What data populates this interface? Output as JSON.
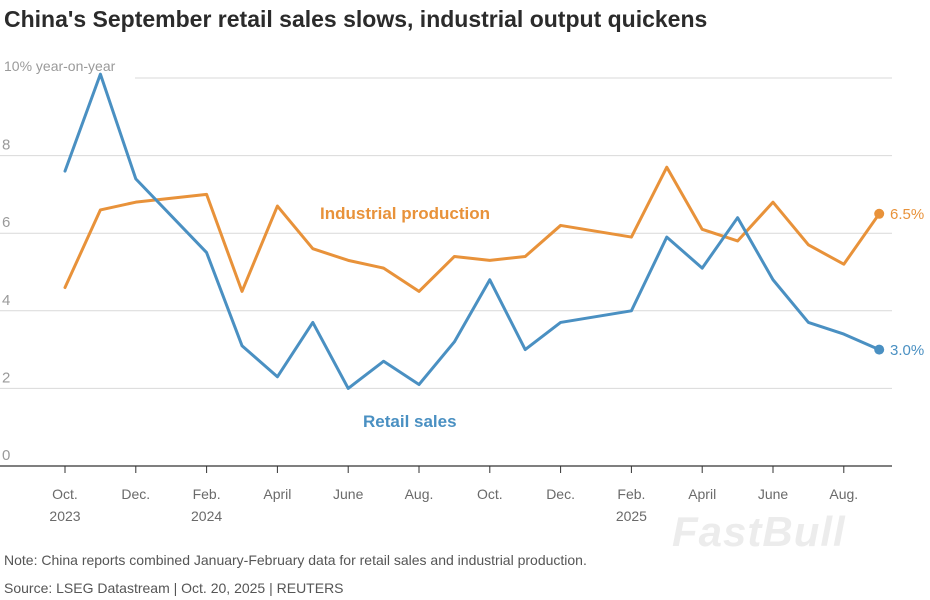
{
  "title": "China's September retail sales slows, industrial output quickens",
  "note": "Note: China reports combined January-February data for retail sales and industrial production.",
  "source": "Source: LSEG Datastream | Oct. 20, 2025 | REUTERS",
  "watermark": "FastBull",
  "colors": {
    "retail": "#4a90c2",
    "industrial": "#e8923a",
    "grid": "#d9d9d9",
    "axis": "#333333"
  },
  "chart_data": {
    "type": "line",
    "title": "China's September retail sales slows, industrial output quickens",
    "ylabel": "10% year-on-year",
    "ylim": [
      0,
      10
    ],
    "yticks": [
      0,
      2,
      4,
      6,
      8
    ],
    "grid": true,
    "x": [
      "Oct. 2023",
      "Nov. 2023",
      "Dec. 2023",
      "Feb. 2024",
      "Mar. 2024",
      "April 2024",
      "May 2024",
      "June 2024",
      "July 2024",
      "Aug. 2024",
      "Sept. 2024",
      "Oct. 2024",
      "Nov. 2024",
      "Dec. 2024",
      "Feb. 2025",
      "Mar. 2025",
      "April 2025",
      "May 2025",
      "June 2025",
      "July 2025",
      "Aug. 2025",
      "Sept. 2025"
    ],
    "x_month_index": [
      0,
      1,
      2,
      4,
      5,
      6,
      7,
      8,
      9,
      10,
      11,
      12,
      13,
      14,
      16,
      17,
      18,
      19,
      20,
      21,
      22,
      23
    ],
    "xtick_labels": [
      {
        "line1": "Oct.",
        "line2": "2023",
        "month_index": 0
      },
      {
        "line1": "Dec.",
        "line2": "",
        "month_index": 2
      },
      {
        "line1": "Feb.",
        "line2": "2024",
        "month_index": 4
      },
      {
        "line1": "April",
        "line2": "",
        "month_index": 6
      },
      {
        "line1": "June",
        "line2": "",
        "month_index": 8
      },
      {
        "line1": "Aug.",
        "line2": "",
        "month_index": 10
      },
      {
        "line1": "Oct.",
        "line2": "",
        "month_index": 12
      },
      {
        "line1": "Dec.",
        "line2": "",
        "month_index": 14
      },
      {
        "line1": "Feb.",
        "line2": "2025",
        "month_index": 16
      },
      {
        "line1": "April",
        "line2": "",
        "month_index": 18
      },
      {
        "line1": "June",
        "line2": "",
        "month_index": 20
      },
      {
        "line1": "Aug.",
        "line2": "",
        "month_index": 22
      }
    ],
    "series": [
      {
        "name": "Industrial production",
        "key": "industrial",
        "values": [
          4.6,
          6.6,
          6.8,
          7.0,
          4.5,
          6.7,
          5.6,
          5.3,
          5.1,
          4.5,
          5.4,
          5.3,
          5.4,
          6.2,
          5.9,
          7.7,
          6.1,
          5.8,
          6.8,
          5.7,
          5.2,
          6.5
        ],
        "end_label": "6.5%"
      },
      {
        "name": "Retail sales",
        "key": "retail",
        "values": [
          7.6,
          10.1,
          7.4,
          5.5,
          3.1,
          2.3,
          3.7,
          2.0,
          2.7,
          2.1,
          3.2,
          4.8,
          3.0,
          3.7,
          4.0,
          5.9,
          5.1,
          6.4,
          4.8,
          3.7,
          3.4,
          3.0
        ],
        "end_label": "3.0%"
      }
    ]
  }
}
